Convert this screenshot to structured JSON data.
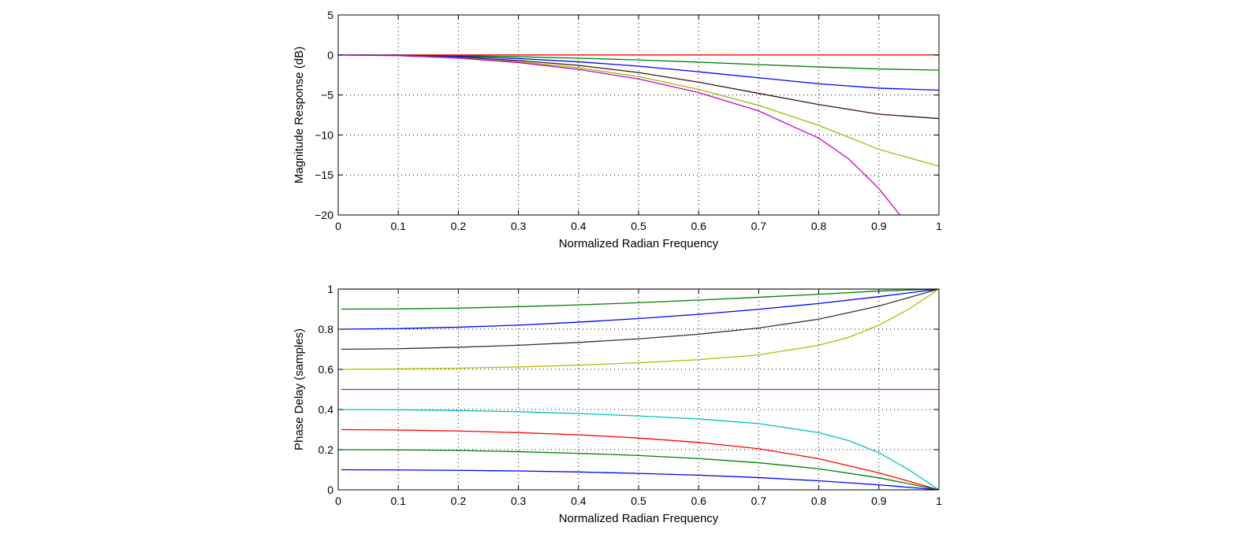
{
  "chart_data": [
    {
      "type": "line",
      "xlabel": "Normalized Radian Frequency",
      "ylabel": "Magnitude Response (dB)",
      "xlim": [
        0,
        1
      ],
      "ylim": [
        -20,
        5
      ],
      "xticks": [
        0,
        0.1,
        0.2,
        0.3,
        0.4,
        0.5,
        0.6,
        0.7,
        0.8,
        0.9,
        1
      ],
      "yticks": [
        5,
        0,
        -5,
        -10,
        -15,
        -20
      ],
      "ytick_labels": [
        "5",
        "0",
        "−5",
        "−10",
        "−15",
        "−20"
      ],
      "xtick_labels": [
        "0",
        "0.1",
        "0.2",
        "0.3",
        "0.4",
        "0.5",
        "0.6",
        "0.7",
        "0.8",
        "0.9",
        "1"
      ],
      "grid": true,
      "series": [
        {
          "color": "#ff0000",
          "x": [
            0,
            0.5,
            1
          ],
          "y": [
            0,
            0,
            0
          ]
        },
        {
          "color": "#008000",
          "x": [
            0,
            0.1,
            0.2,
            0.3,
            0.4,
            0.5,
            0.6,
            0.7,
            0.8,
            0.9,
            1
          ],
          "y": [
            0,
            -0.02,
            -0.1,
            -0.22,
            -0.4,
            -0.62,
            -0.9,
            -1.2,
            -1.5,
            -1.75,
            -1.9
          ]
        },
        {
          "color": "#0000ff",
          "x": [
            0,
            0.1,
            0.2,
            0.3,
            0.4,
            0.5,
            0.6,
            0.7,
            0.8,
            0.9,
            1
          ],
          "y": [
            0,
            -0.04,
            -0.2,
            -0.45,
            -0.85,
            -1.4,
            -2.1,
            -2.85,
            -3.6,
            -4.15,
            -4.4
          ]
        },
        {
          "color": "#3c1414",
          "x": [
            0,
            0.1,
            0.2,
            0.3,
            0.4,
            0.5,
            0.6,
            0.7,
            0.8,
            0.9,
            1
          ],
          "y": [
            0,
            -0.06,
            -0.3,
            -0.7,
            -1.3,
            -2.2,
            -3.4,
            -4.8,
            -6.2,
            -7.4,
            -7.95
          ]
        },
        {
          "color": "#99bb00",
          "x": [
            0,
            0.1,
            0.2,
            0.3,
            0.4,
            0.5,
            0.6,
            0.7,
            0.8,
            0.9,
            1
          ],
          "y": [
            0,
            -0.08,
            -0.35,
            -0.85,
            -1.6,
            -2.7,
            -4.3,
            -6.3,
            -8.8,
            -11.8,
            -13.9
          ]
        },
        {
          "color": "#cc00cc",
          "x": [
            0,
            0.1,
            0.2,
            0.3,
            0.4,
            0.5,
            0.6,
            0.7,
            0.8,
            0.85,
            0.9,
            0.935
          ],
          "y": [
            0,
            -0.09,
            -0.4,
            -0.95,
            -1.8,
            -3.0,
            -4.7,
            -7.0,
            -10.4,
            -13.0,
            -16.7,
            -20
          ]
        }
      ]
    },
    {
      "type": "line",
      "xlabel": "Normalized Radian Frequency",
      "ylabel": "Phase Delay (samples)",
      "xlim": [
        0,
        1
      ],
      "ylim": [
        0,
        1
      ],
      "xticks": [
        0,
        0.1,
        0.2,
        0.3,
        0.4,
        0.5,
        0.6,
        0.7,
        0.8,
        0.9,
        1
      ],
      "yticks": [
        1,
        0.8,
        0.6,
        0.4,
        0.2,
        0
      ],
      "ytick_labels": [
        "1",
        "0.8",
        "0.6",
        "0.4",
        "0.2",
        "0"
      ],
      "xtick_labels": [
        "0",
        "0.1",
        "0.2",
        "0.3",
        "0.4",
        "0.5",
        "0.6",
        "0.7",
        "0.8",
        "0.9",
        "1"
      ],
      "grid": true,
      "series": [
        {
          "color": "#ff0000",
          "x": [
            0.005,
            1
          ],
          "y": [
            1.0,
            1.0
          ]
        },
        {
          "color": "#008000",
          "x": [
            0.005,
            0.1,
            0.2,
            0.3,
            0.4,
            0.5,
            0.6,
            0.7,
            0.8,
            0.9,
            1
          ],
          "y": [
            0.9,
            0.901,
            0.905,
            0.912,
            0.921,
            0.932,
            0.945,
            0.959,
            0.974,
            0.99,
            1.0
          ]
        },
        {
          "color": "#0000ff",
          "x": [
            0.005,
            0.1,
            0.2,
            0.3,
            0.4,
            0.5,
            0.6,
            0.7,
            0.8,
            0.9,
            1
          ],
          "y": [
            0.8,
            0.803,
            0.81,
            0.82,
            0.835,
            0.853,
            0.874,
            0.899,
            0.928,
            0.962,
            1.0
          ]
        },
        {
          "color": "#333333",
          "x": [
            0.005,
            0.1,
            0.2,
            0.3,
            0.4,
            0.5,
            0.6,
            0.7,
            0.8,
            0.9,
            1
          ],
          "y": [
            0.7,
            0.703,
            0.71,
            0.72,
            0.734,
            0.752,
            0.775,
            0.806,
            0.85,
            0.915,
            1.0
          ]
        },
        {
          "color": "#b8b800",
          "x": [
            0.005,
            0.1,
            0.2,
            0.3,
            0.4,
            0.5,
            0.6,
            0.7,
            0.8,
            0.85,
            0.9,
            0.95,
            1
          ],
          "y": [
            0.6,
            0.602,
            0.606,
            0.612,
            0.621,
            0.633,
            0.648,
            0.672,
            0.72,
            0.76,
            0.82,
            0.9,
            1.0
          ]
        },
        {
          "color": "#cc00cc",
          "x": [
            0.005,
            1
          ],
          "y": [
            0.5,
            0.5
          ]
        },
        {
          "color": "#00c0c0",
          "x": [
            0.005,
            0.1,
            0.2,
            0.3,
            0.4,
            0.5,
            0.6,
            0.7,
            0.8,
            0.85,
            0.9,
            0.95,
            1
          ],
          "y": [
            0.4,
            0.399,
            0.395,
            0.389,
            0.38,
            0.368,
            0.353,
            0.33,
            0.285,
            0.245,
            0.185,
            0.1,
            0.0
          ]
        },
        {
          "color": "#ff0000",
          "x": [
            0.005,
            0.1,
            0.2,
            0.3,
            0.4,
            0.5,
            0.6,
            0.7,
            0.8,
            0.9,
            1
          ],
          "y": [
            0.3,
            0.298,
            0.293,
            0.285,
            0.274,
            0.258,
            0.236,
            0.205,
            0.155,
            0.085,
            0.0
          ]
        },
        {
          "color": "#008000",
          "x": [
            0.005,
            0.1,
            0.2,
            0.3,
            0.4,
            0.5,
            0.6,
            0.7,
            0.8,
            0.9,
            1
          ],
          "y": [
            0.2,
            0.199,
            0.196,
            0.19,
            0.182,
            0.171,
            0.156,
            0.135,
            0.105,
            0.06,
            0.0
          ]
        },
        {
          "color": "#0000ff",
          "x": [
            0.005,
            0.1,
            0.2,
            0.3,
            0.4,
            0.5,
            0.6,
            0.7,
            0.8,
            0.9,
            1
          ],
          "y": [
            0.1,
            0.099,
            0.097,
            0.094,
            0.089,
            0.082,
            0.073,
            0.061,
            0.045,
            0.025,
            0.0
          ]
        }
      ]
    }
  ]
}
